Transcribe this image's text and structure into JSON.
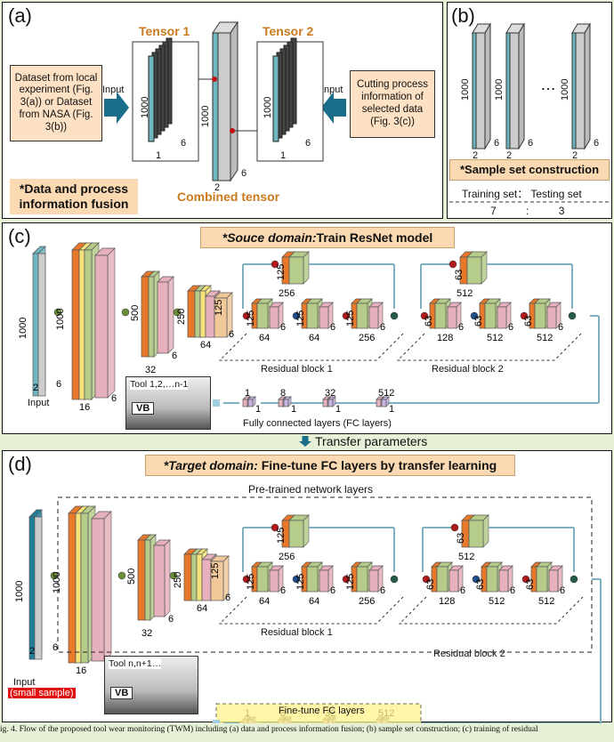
{
  "panel_a": {
    "label": "(a)",
    "tensor1": "Tensor 1",
    "tensor2": "Tensor 2",
    "combined": "Combined tensor",
    "left_box": "Dataset from local experiment (Fig. 3(a)) or Dataset from NASA (Fig. 3(b))",
    "right_box": "Cutting process information of selected data (Fig. 3(c))",
    "input_left": "Input",
    "input_right": "Input",
    "fusion": "*Data and process information fusion",
    "dim_1000": "1000",
    "dim_6": "6",
    "dim_1": "1",
    "dim_2": "2"
  },
  "panel_b": {
    "label": "(b)",
    "dim_1000": "1000",
    "dim_2": "2",
    "dim_6": "6",
    "ellipsis": "…",
    "title": "*Sample set construction",
    "split_header": "Training set： Testing set",
    "split_values": "7          :          3"
  },
  "panel_c": {
    "label": "(c)",
    "title_italic": "*Souce domain:",
    "title_rest": "Train ResNet model",
    "input": "Input",
    "res1": "Residual block 1",
    "res2": "Residual block 2",
    "tool": "Tool 1,2,…n-1",
    "vb": "VB",
    "fc": "Fully connected layers (FC layers)"
  },
  "transfer": "Transfer parameters",
  "panel_d": {
    "label": "(d)",
    "title_italic": "*Target domain:",
    "title_rest": " Fine-tune FC layers by transfer learning",
    "pretrained": "Pre-trained network layers",
    "input": "Input",
    "small_sample": "(small sample)",
    "res1": "Residual block 1",
    "res2": "Residual block 2",
    "tool": "Tool n,n+1…",
    "vb": "VB",
    "fc": "Fine-tune FC layers"
  },
  "dims": {
    "n1000": "1000",
    "n500": "500",
    "n250": "250",
    "n125": "125",
    "n256": "256",
    "n64": "64",
    "n32": "32",
    "n16": "16",
    "n63": "63",
    "n128": "128",
    "n512": "512",
    "n6": "6",
    "n3": "3",
    "n2": "2",
    "n8": "8",
    "n1": "1"
  },
  "caption": "ig. 4. Flow of the proposed tool wear monitoring (TWM) including (a) data and process information fusion; (b) sample set construction; (c) training of residual",
  "colors": {
    "teal": "#6fb6c0",
    "orange": "#e8782a",
    "green": "#b6cc8a",
    "pink": "#e6b1bd",
    "arrow": "#7fb0c0",
    "dot_red": "#b01c1c",
    "dot_green": "#6a8e3a",
    "dot_blue": "#1f4e8a"
  }
}
